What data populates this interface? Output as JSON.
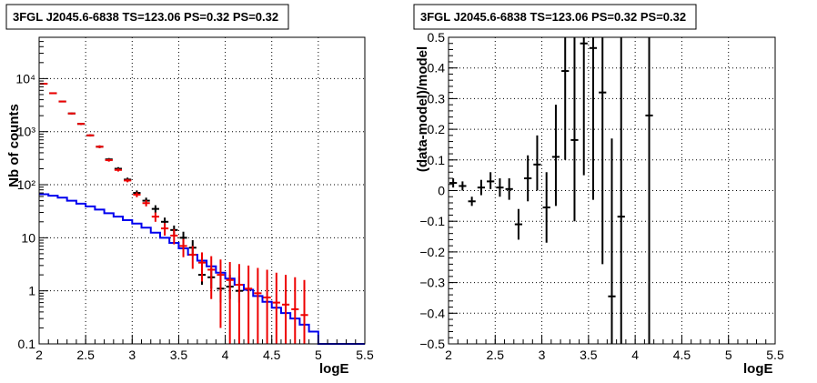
{
  "chart_data": [
    {
      "type": "scatter",
      "title": "3FGL J2045.6-6838 TS=123.06 PS=0.32 PS=0.32",
      "xlabel": "logE",
      "ylabel": "Nb of counts",
      "xlim": [
        2,
        5.5
      ],
      "ylim": [
        0.1,
        60000
      ],
      "yscale": "log",
      "grid": true,
      "x_tick_labels": [
        "2",
        "2.5",
        "3",
        "3.5",
        "4",
        "4.5",
        "5",
        "5.5"
      ],
      "y_tick_labels": [
        "0.1",
        "1",
        "10",
        "10²",
        "10³",
        "10⁴"
      ],
      "series": [
        {
          "kind": "step-line",
          "color": "#0000ee",
          "x_edges": [
            2.0,
            2.1,
            2.2,
            2.3,
            2.4,
            2.5,
            2.6,
            2.7,
            2.8,
            2.9,
            3.0,
            3.1,
            3.2,
            3.3,
            3.4,
            3.5,
            3.6,
            3.7,
            3.8,
            3.9,
            4.0,
            4.1,
            4.2,
            4.3,
            4.4,
            4.5,
            4.6,
            4.7,
            4.8,
            4.9,
            5.0,
            5.1,
            5.2,
            5.3,
            5.4,
            5.5
          ],
          "values": [
            66,
            62,
            57,
            50,
            44,
            39,
            34,
            29,
            25,
            21.5,
            18.5,
            15.5,
            12.5,
            10,
            8,
            6.3,
            4.8,
            3.7,
            2.9,
            2.2,
            1.7,
            1.3,
            1.05,
            0.8,
            0.62,
            0.48,
            0.38,
            0.3,
            0.23,
            0.17,
            0.1,
            0.1,
            0.1,
            0.1,
            0.1
          ]
        },
        {
          "kind": "points",
          "color": "#000000",
          "x": [
            2.05,
            2.15,
            2.25,
            2.35,
            2.45,
            2.55,
            2.65,
            2.75,
            2.85,
            2.95,
            3.05,
            3.15,
            3.25,
            3.35,
            3.45,
            3.55,
            3.65,
            3.75,
            3.85,
            3.95,
            4.05,
            4.15
          ],
          "y": [
            8000,
            5300,
            3700,
            2200,
            1400,
            850,
            520,
            300,
            200,
            125,
            70,
            50,
            35,
            20,
            14,
            10,
            6.5,
            2.0,
            1.8,
            1.1,
            1.2,
            1.0
          ],
          "yerr_low": [
            7800,
            5150,
            3580,
            2120,
            1340,
            810,
            490,
            282,
            186,
            114,
            62,
            43,
            29,
            16,
            11,
            7.5,
            4.5,
            1.3,
            1.1,
            0.6,
            0.7,
            0.6
          ],
          "yerr_high": [
            8200,
            5450,
            3820,
            2280,
            1460,
            890,
            550,
            318,
            214,
            136,
            78,
            57,
            41,
            24,
            17,
            13,
            9.0,
            3.0,
            2.7,
            2.0,
            2.0,
            1.9
          ]
        },
        {
          "kind": "points",
          "color": "#ee0000",
          "x": [
            2.05,
            2.15,
            2.25,
            2.35,
            2.45,
            2.55,
            2.65,
            2.75,
            2.85,
            2.95,
            3.05,
            3.15,
            3.25,
            3.35,
            3.45,
            3.55,
            3.65,
            3.75,
            3.85,
            3.95,
            4.05,
            4.15,
            4.25,
            4.35,
            4.45,
            4.55,
            4.65,
            4.75,
            4.85
          ],
          "y": [
            8000,
            5300,
            3700,
            2200,
            1400,
            850,
            520,
            290,
            190,
            120,
            65,
            45,
            25,
            15,
            11,
            7,
            4.8,
            3.4,
            2.5,
            2.0,
            1.6,
            1.3,
            1.1,
            0.9,
            0.75,
            0.6,
            0.55,
            0.45,
            0.35
          ],
          "yerr_low": [
            7800,
            5150,
            3580,
            2120,
            1340,
            810,
            490,
            272,
            177,
            111,
            58,
            39,
            20,
            11,
            7.5,
            4.3,
            2.6,
            1.5,
            0.7,
            0.2,
            0.1,
            0.1,
            0.1,
            0.1,
            0.1,
            0.1,
            0.1,
            0.1,
            0.1
          ],
          "yerr_high": [
            8200,
            5450,
            3820,
            2280,
            1460,
            890,
            550,
            308,
            203,
            129,
            72,
            51,
            30,
            19,
            14.5,
            9.5,
            7,
            5.3,
            4.5,
            3.9,
            3.5,
            3.2,
            3.0,
            2.7,
            2.5,
            2.2,
            2.0,
            1.8,
            1.6
          ]
        }
      ]
    },
    {
      "type": "scatter",
      "title": "3FGL J2045.6-6838 TS=123.06 PS=0.32 PS=0.32",
      "xlabel": "logE",
      "ylabel": "(data-model)/model",
      "xlim": [
        2,
        5.5
      ],
      "ylim": [
        -0.5,
        0.5
      ],
      "grid": true,
      "x_tick_labels": [
        "2",
        "2.5",
        "3",
        "3.5",
        "4",
        "4.5",
        "5",
        "5.5"
      ],
      "y_tick_labels": [
        "−0.5",
        "−0.4",
        "−0.3",
        "−0.2",
        "−0.1",
        "0",
        "0.1",
        "0.2",
        "0.3",
        "0.4",
        "0.5"
      ],
      "series": [
        {
          "kind": "points",
          "color": "#000000",
          "x": [
            2.05,
            2.15,
            2.25,
            2.35,
            2.45,
            2.55,
            2.65,
            2.75,
            2.85,
            2.95,
            3.05,
            3.15,
            3.25,
            3.35,
            3.45,
            3.55,
            3.65,
            3.75,
            3.85,
            4.15
          ],
          "y": [
            0.025,
            0.015,
            -0.035,
            0.01,
            0.03,
            0.01,
            0.005,
            -0.11,
            0.04,
            0.085,
            -0.055,
            0.11,
            0.39,
            0.165,
            0.48,
            0.465,
            0.32,
            -0.345,
            -0.085,
            0.245
          ],
          "yerr_low": [
            0.01,
            0,
            -0.05,
            -0.015,
            0.005,
            -0.02,
            -0.03,
            -0.16,
            -0.035,
            0,
            -0.17,
            -0.05,
            0.1,
            -0.1,
            0.05,
            -0.03,
            -0.24,
            -0.5,
            -0.5,
            -0.5
          ],
          "yerr_high": [
            0.04,
            0.03,
            -0.02,
            0.035,
            0.06,
            0.04,
            0.04,
            -0.06,
            0.115,
            0.18,
            0.06,
            0.28,
            0.5,
            0.5,
            0.5,
            0.5,
            0.5,
            0.17,
            0.5,
            0.5
          ]
        }
      ]
    }
  ]
}
